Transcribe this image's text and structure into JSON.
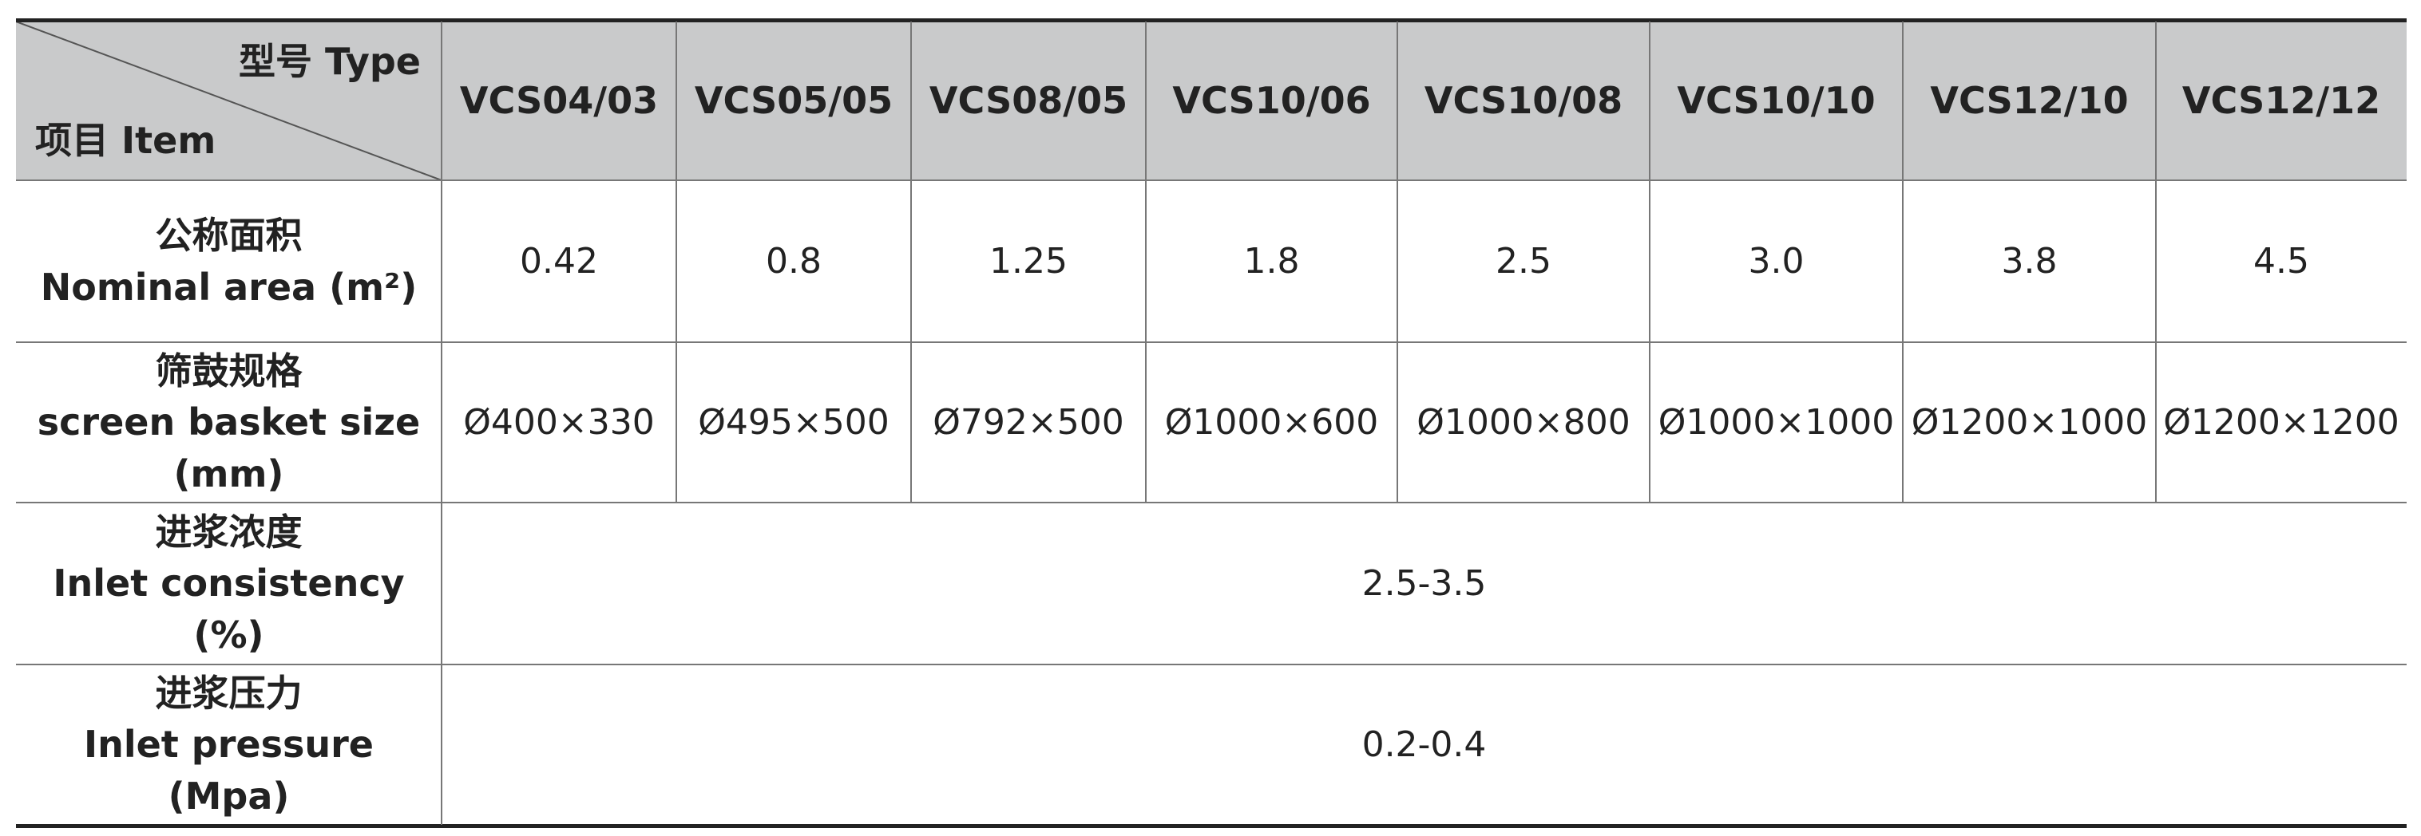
{
  "header": {
    "type_label": "型号 Type",
    "item_label": "项目 Item",
    "models": [
      "VCS04/03",
      "VCS05/05",
      "VCS08/05",
      "VCS10/06",
      "VCS10/08",
      "VCS10/10",
      "VCS12/10",
      "VCS12/12"
    ]
  },
  "rows": [
    {
      "label": [
        "公称面积",
        "Nominal area (m²)"
      ],
      "values": [
        "0.42",
        "0.8",
        "1.25",
        "1.8",
        "2.5",
        "3.0",
        "3.8",
        "4.5"
      ]
    },
    {
      "label": [
        "筛鼓规格",
        "screen basket size",
        "(mm)"
      ],
      "values": [
        "Ø400×330",
        "Ø495×500",
        "Ø792×500",
        "Ø1000×600",
        "Ø1000×800",
        "Ø1000×1000",
        "Ø1200×1000",
        "Ø1200×1200"
      ]
    },
    {
      "label": [
        "进浆浓度",
        "Inlet consistency",
        "(%)"
      ],
      "value": "2.5-3.5"
    },
    {
      "label": [
        "进浆压力",
        "Inlet pressure",
        "(Mpa)"
      ],
      "value": "0.2-0.4"
    }
  ]
}
